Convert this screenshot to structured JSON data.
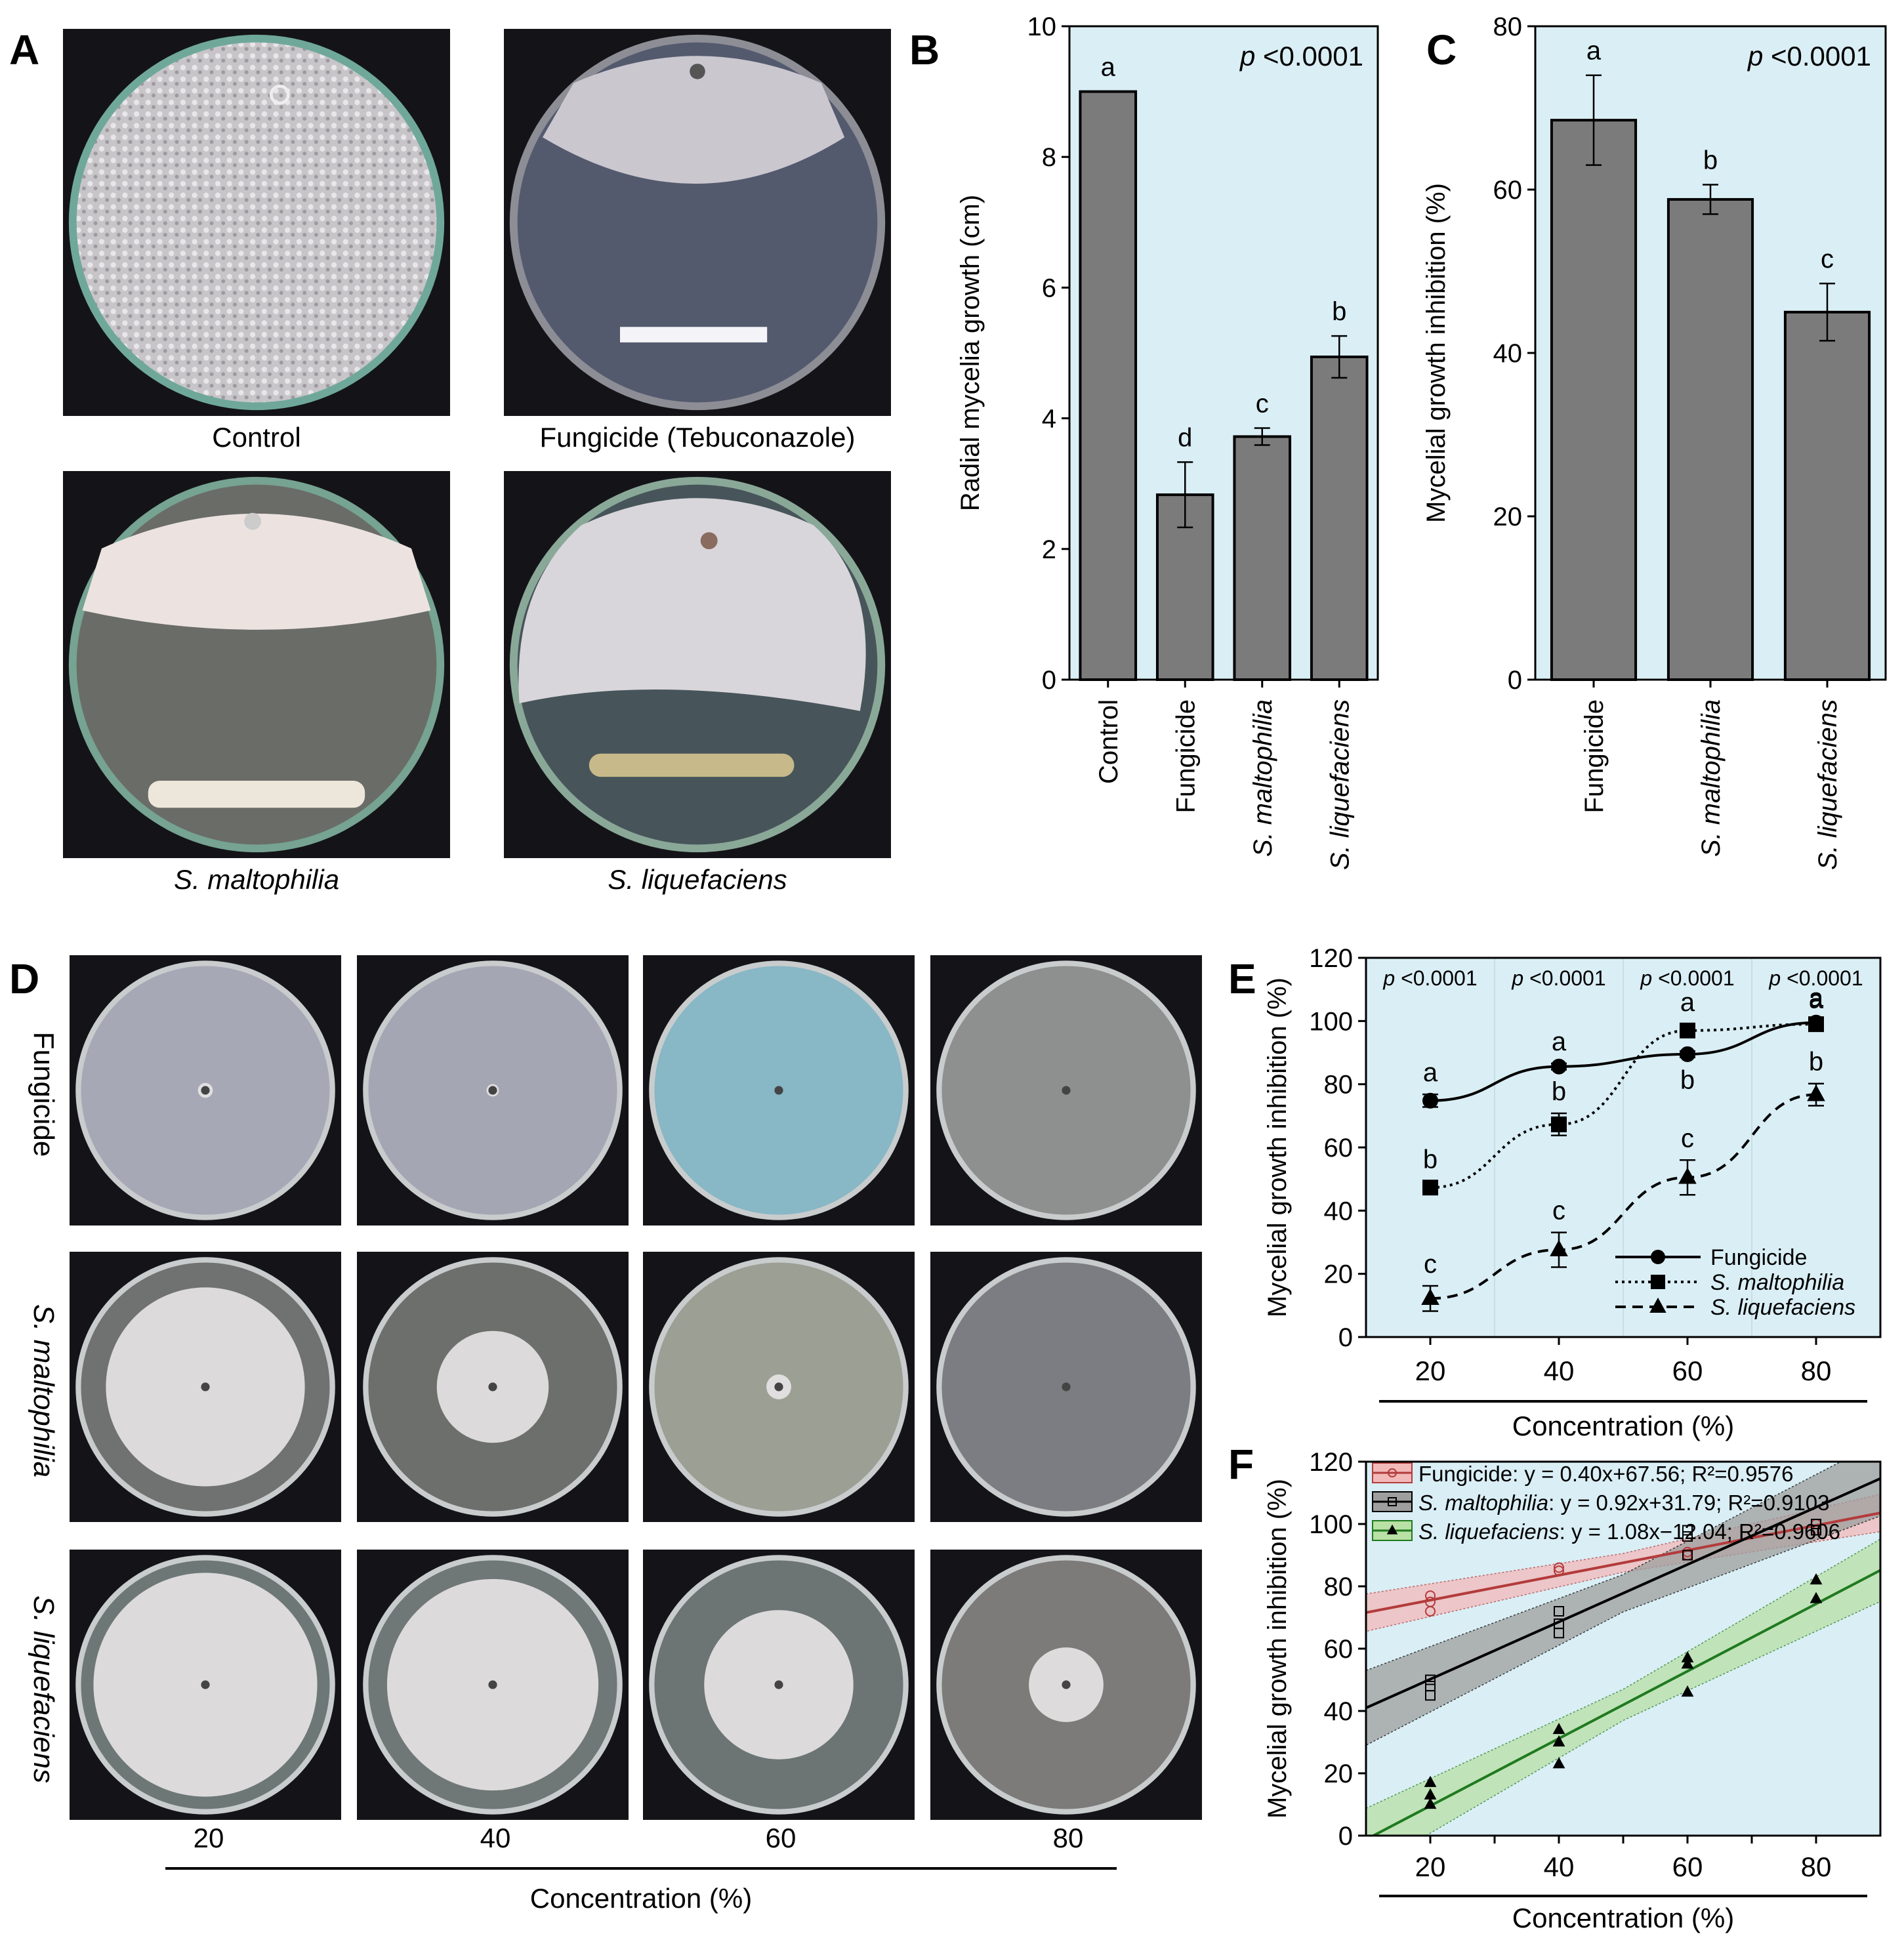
{
  "panels": {
    "A": "A",
    "B": "B",
    "C": "C",
    "D": "D",
    "E": "E",
    "F": "F"
  },
  "panel_a": {
    "captions": [
      {
        "text": "Control",
        "italic": false
      },
      {
        "text": "Fungicide (Tebuconazole)",
        "italic": false
      },
      {
        "text": "S. maltophilia",
        "italic": true
      },
      {
        "text": "S. liquefaciens",
        "italic": true
      }
    ]
  },
  "panel_d": {
    "rows": [
      {
        "text": "Fungicide",
        "italic": false
      },
      {
        "text": "S. maltophilia",
        "italic": true
      },
      {
        "text": "S. liquefaciens",
        "italic": true
      }
    ],
    "columns": [
      "20",
      "40",
      "60",
      "80"
    ],
    "xlabel": "Concentration  (%)",
    "plate_colony_fraction": [
      [
        0.06,
        0.05,
        0.03,
        0.01
      ],
      [
        0.8,
        0.45,
        0.1,
        0.03
      ],
      [
        0.9,
        0.85,
        0.6,
        0.3
      ]
    ]
  },
  "colors": {
    "plot_bg": "#daeef5",
    "bar": "#7b7b7b",
    "fungicide_line": "#b33b3b",
    "fungicide_band": "#f2b9b9",
    "maltophilia_band": "#9e9e9e",
    "liquefaciens_line": "#1f7a1f",
    "liquefaciens_band": "#b9e0a5"
  },
  "chart_data": [
    {
      "id": "B",
      "type": "bar",
      "ylabel": "Radial mycelia growth (cm)",
      "ylim": [
        0,
        10
      ],
      "yticks": [
        "0",
        "2",
        "4",
        "6",
        "8",
        "10"
      ],
      "categories": [
        {
          "text": "Control",
          "italic": false
        },
        {
          "text": "Fungicide",
          "italic": false
        },
        {
          "text": "S. maltophilia",
          "italic": true
        },
        {
          "text": "S. liquefaciens",
          "italic": true
        }
      ],
      "values": [
        9.0,
        2.83,
        3.72,
        4.94
      ],
      "errors": [
        0,
        0.5,
        0.13,
        0.32
      ],
      "letters": [
        "a",
        "d",
        "c",
        "b"
      ],
      "annotation": {
        "p": "p",
        "rest": " <0.0001"
      }
    },
    {
      "id": "C",
      "type": "bar",
      "ylabel": "Mycelial growth inhibition (%)",
      "ylim": [
        0,
        80
      ],
      "yticks": [
        "0",
        "20",
        "40",
        "60",
        "80"
      ],
      "categories": [
        {
          "text": "Fungicide",
          "italic": false
        },
        {
          "text": "S. maltophilia",
          "italic": true
        },
        {
          "text": "S. liquefaciens",
          "italic": true
        }
      ],
      "values": [
        68.5,
        58.8,
        45.0
      ],
      "errors": [
        5.5,
        1.8,
        3.5
      ],
      "letters": [
        "a",
        "b",
        "c"
      ],
      "annotation": {
        "p": "p",
        "rest": " <0.0001"
      }
    },
    {
      "id": "E",
      "type": "line",
      "ylabel": "Mycelial growth inhibition (%)",
      "xlabel": "Concentration  (%)",
      "ylim": [
        0,
        120
      ],
      "yticks": [
        "0",
        "20",
        "40",
        "60",
        "80",
        "100",
        "120"
      ],
      "x": [
        20,
        40,
        60,
        80
      ],
      "xticks": [
        "20",
        "40",
        "60",
        "80"
      ],
      "p_labels": [
        "p <0.0001",
        "p <0.0001",
        "p <0.0001",
        "p <0.0001"
      ],
      "series": [
        {
          "name": "Fungicide",
          "italic": false,
          "values": [
            74.8,
            85.6,
            89.5,
            99.5
          ],
          "errors": [
            2,
            1,
            1,
            1
          ],
          "letters": [
            "a",
            "a",
            "b",
            "a"
          ],
          "marker": "circle",
          "dash": ""
        },
        {
          "name": "S. maltophilia",
          "italic": true,
          "values": [
            47.3,
            67.3,
            97.0,
            99.0
          ],
          "errors": [
            2,
            3.5,
            2,
            1
          ],
          "letters": [
            "b",
            "b",
            "a",
            "a"
          ],
          "marker": "square",
          "dash": "4 6"
        },
        {
          "name": "S. liquefaciens",
          "italic": true,
          "values": [
            12.2,
            27.6,
            50.5,
            76.7
          ],
          "errors": [
            4,
            5.5,
            5.5,
            3.5
          ],
          "letters": [
            "c",
            "c",
            "c",
            "b"
          ],
          "marker": "triangle",
          "dash": "16 10"
        }
      ]
    },
    {
      "id": "F",
      "type": "scatter",
      "ylabel": "Mycelial growth inhibition (%)",
      "xlabel": "Concentration  (%)",
      "ylim": [
        0,
        120
      ],
      "yticks": [
        "0",
        "20",
        "40",
        "60",
        "80",
        "100",
        "120"
      ],
      "xlim": [
        10,
        90
      ],
      "xticks": [
        "20",
        "40",
        "60",
        "80"
      ],
      "series": [
        {
          "name": "Fungicide",
          "legend": [
            {
              "text": "Fungicide",
              "italic": false
            },
            {
              "text": ": y = 0.40x+67.56; R²=0.9576",
              "italic": false
            }
          ],
          "slope": 0.4,
          "intercept": 67.56,
          "band": 3,
          "marker": "circle",
          "points": [
            [
              20,
              72
            ],
            [
              20,
              75
            ],
            [
              20,
              77
            ],
            [
              40,
              85
            ],
            [
              40,
              86
            ],
            [
              60,
              90
            ],
            [
              60,
              91
            ],
            [
              80,
              98
            ],
            [
              80,
              100
            ]
          ]
        },
        {
          "name": "S. maltophilia",
          "legend": [
            {
              "text": "S. maltophilia",
              "italic": true
            },
            {
              "text": ": y = 0.92x+31.79; R²=0.9103",
              "italic": false
            }
          ],
          "slope": 0.92,
          "intercept": 31.79,
          "band": 6,
          "marker": "square",
          "points": [
            [
              20,
              45
            ],
            [
              20,
              48
            ],
            [
              20,
              50
            ],
            [
              40,
              65
            ],
            [
              40,
              68
            ],
            [
              40,
              72
            ],
            [
              60,
              90
            ],
            [
              60,
              96
            ],
            [
              60,
              98
            ],
            [
              80,
              98
            ],
            [
              80,
              100
            ]
          ]
        },
        {
          "name": "S. liquefaciens",
          "legend": [
            {
              "text": "S. liquefaciens",
              "italic": true
            },
            {
              "text": ": y = 1.08x−12.04; R²=0.9606",
              "italic": false
            }
          ],
          "slope": 1.08,
          "intercept": -12.04,
          "band": 5,
          "marker": "triangle",
          "points": [
            [
              20,
              10
            ],
            [
              20,
              13
            ],
            [
              20,
              17
            ],
            [
              40,
              23
            ],
            [
              40,
              30
            ],
            [
              40,
              34
            ],
            [
              60,
              46
            ],
            [
              60,
              55
            ],
            [
              60,
              57
            ],
            [
              80,
              76
            ],
            [
              80,
              82
            ]
          ]
        }
      ]
    }
  ]
}
